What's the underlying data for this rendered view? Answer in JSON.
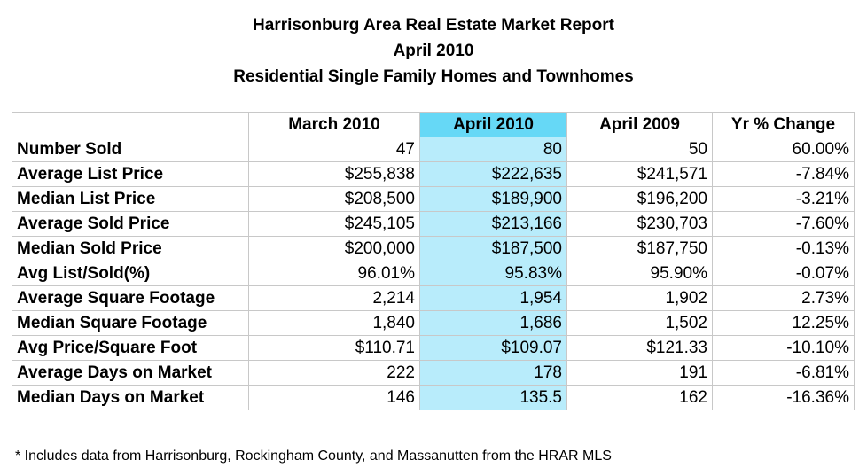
{
  "title": {
    "line1": "Harrisonburg Area Real Estate Market Report",
    "line2": "April 2010",
    "line3": "Residential Single Family Homes and Townhomes"
  },
  "colors": {
    "highlight_header": "#66d8f6",
    "highlight_column": "#b8ecfb",
    "grid_line": "#c8c8c8"
  },
  "table": {
    "headers": [
      "",
      "March 2010",
      "April 2010",
      "April 2009",
      "Yr % Change"
    ],
    "rows": [
      {
        "label": "Number Sold",
        "march_2010": "47",
        "april_2010": "80",
        "april_2009": "50",
        "yr_change": "60.00%"
      },
      {
        "label": "Average List Price",
        "march_2010": "$255,838",
        "april_2010": "$222,635",
        "april_2009": "$241,571",
        "yr_change": "-7.84%"
      },
      {
        "label": "Median List Price",
        "march_2010": "$208,500",
        "april_2010": "$189,900",
        "april_2009": "$196,200",
        "yr_change": "-3.21%"
      },
      {
        "label": "Average Sold Price",
        "march_2010": "$245,105",
        "april_2010": "$213,166",
        "april_2009": "$230,703",
        "yr_change": "-7.60%"
      },
      {
        "label": "Median Sold Price",
        "march_2010": "$200,000",
        "april_2010": "$187,500",
        "april_2009": "$187,750",
        "yr_change": "-0.13%"
      },
      {
        "label": "Avg List/Sold(%)",
        "march_2010": "96.01%",
        "april_2010": "95.83%",
        "april_2009": "95.90%",
        "yr_change": "-0.07%"
      },
      {
        "label": "Average Square Footage",
        "march_2010": "2,214",
        "april_2010": "1,954",
        "april_2009": "1,902",
        "yr_change": "2.73%"
      },
      {
        "label": "Median Square Footage",
        "march_2010": "1,840",
        "april_2010": "1,686",
        "april_2009": "1,502",
        "yr_change": "12.25%"
      },
      {
        "label": "Avg Price/Square Foot",
        "march_2010": "$110.71",
        "april_2010": "$109.07",
        "april_2009": "$121.33",
        "yr_change": "-10.10%"
      },
      {
        "label": "Average Days on Market",
        "march_2010": "222",
        "april_2010": "178",
        "april_2009": "191",
        "yr_change": "-6.81%"
      },
      {
        "label": "Median Days on Market",
        "march_2010": "146",
        "april_2010": "135.5",
        "april_2009": "162",
        "yr_change": "-16.36%"
      }
    ]
  },
  "footnote": "* Includes data from Harrisonburg, Rockingham County, and Massanutten from the HRAR MLS"
}
